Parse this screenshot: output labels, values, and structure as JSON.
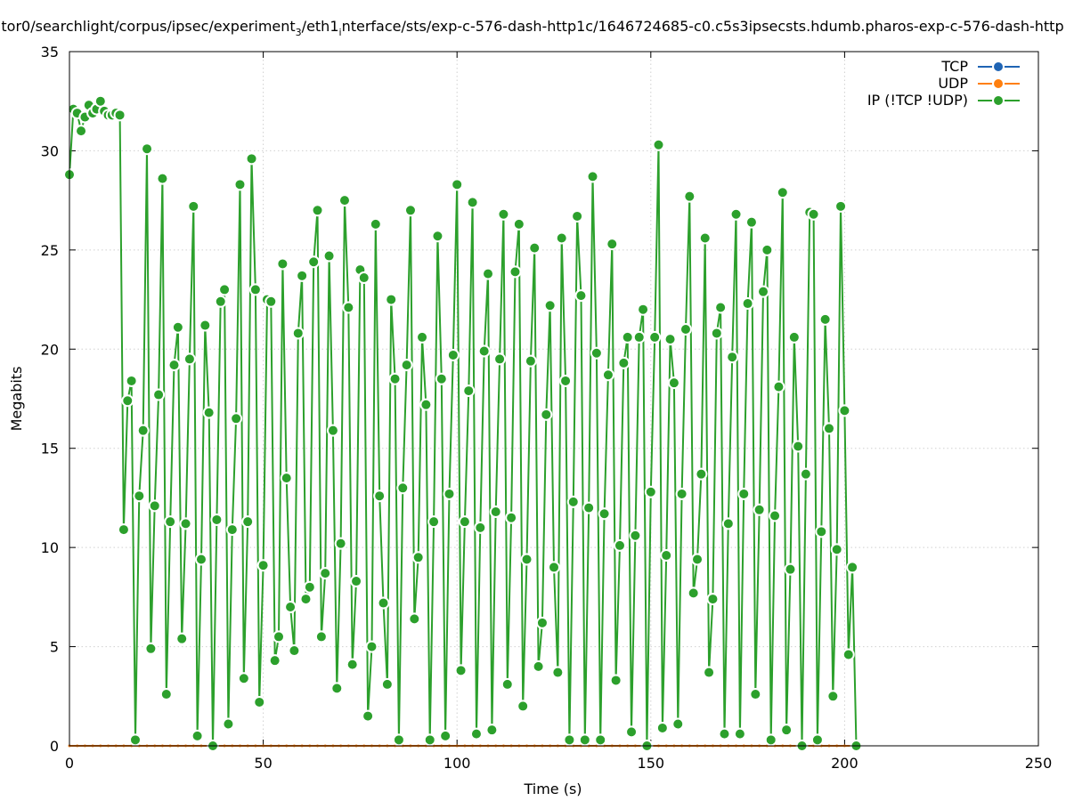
{
  "chart_data": {
    "type": "line",
    "title": "tor0/searchlight/corpus/ipsec/experiment",
    "title_sub": "3",
    "title_mid": "/eth1",
    "title_sub2": "i",
    "title_rest": "nterface/sts/exp-c-576-dash-http1c/1646724685-c0.c5s3ipsecsts.hdumb.pharos-exp-c-576-dash-http",
    "xlabel": "Time (s)",
    "ylabel": "Megabits",
    "xlim": [
      0,
      250
    ],
    "ylim": [
      0,
      35
    ],
    "xticks": [
      0,
      50,
      100,
      150,
      200,
      250
    ],
    "yticks": [
      0,
      5,
      10,
      15,
      20,
      25,
      30,
      35
    ],
    "grid": true,
    "legend_position": "top-right",
    "series": [
      {
        "name": "TCP",
        "color": "#1f64b4",
        "x": [],
        "y": []
      },
      {
        "name": "UDP",
        "color": "#ff7f0e",
        "x": [
          0,
          2,
          4,
          6,
          8,
          10,
          12,
          14,
          16,
          18,
          20,
          22,
          24,
          26,
          28,
          30,
          32,
          34,
          36,
          38,
          40,
          42,
          44,
          46,
          48,
          50,
          52,
          54,
          56,
          58,
          60,
          62,
          64,
          66,
          68,
          70,
          72,
          74,
          76,
          78,
          80,
          82,
          84,
          86,
          88,
          90,
          92,
          94,
          96,
          98,
          100,
          102,
          104,
          106,
          108,
          110,
          112,
          114,
          116,
          118,
          120,
          122,
          124,
          126,
          128,
          130,
          132,
          134,
          136,
          138,
          140,
          142,
          144,
          146,
          148,
          150,
          152,
          154,
          156,
          158,
          160,
          162,
          164,
          166,
          168,
          170,
          172,
          174,
          176,
          178,
          180,
          182,
          184,
          186,
          188,
          190,
          192,
          194,
          196,
          198,
          200,
          202
        ],
        "y": [
          0,
          0,
          0,
          0,
          0,
          0,
          0,
          0,
          0,
          0,
          0,
          0,
          0,
          0,
          0,
          0,
          0,
          0,
          0,
          0,
          0,
          0,
          0,
          0,
          0,
          0,
          0,
          0,
          0,
          0,
          0,
          0,
          0,
          0,
          0,
          0,
          0,
          0,
          0,
          0,
          0,
          0,
          0,
          0,
          0,
          0,
          0,
          0,
          0,
          0,
          0,
          0,
          0,
          0,
          0,
          0,
          0,
          0,
          0,
          0,
          0,
          0,
          0,
          0,
          0,
          0,
          0,
          0,
          0,
          0,
          0,
          0,
          0,
          0,
          0,
          0,
          0,
          0,
          0,
          0,
          0,
          0,
          0,
          0,
          0,
          0,
          0,
          0,
          0,
          0,
          0,
          0,
          0,
          0,
          0,
          0,
          0,
          0,
          0,
          0,
          0,
          0
        ]
      },
      {
        "name": "IP (!TCP  !UDP)",
        "color": "#2ca02c",
        "x": [
          0,
          1,
          2,
          3,
          4,
          5,
          6,
          7,
          8,
          9,
          10,
          11,
          12,
          13,
          14,
          15,
          16,
          17,
          18,
          19,
          20,
          21,
          22,
          23,
          24,
          25,
          26,
          27,
          28,
          29,
          30,
          31,
          32,
          33,
          34,
          35,
          36,
          37,
          38,
          39,
          40,
          41,
          42,
          43,
          44,
          45,
          46,
          47,
          48,
          49,
          50,
          51,
          52,
          53,
          54,
          55,
          56,
          57,
          58,
          59,
          60,
          61,
          62,
          63,
          64,
          65,
          66,
          67,
          68,
          69,
          70,
          71,
          72,
          73,
          74,
          75,
          76,
          77,
          78,
          79,
          80,
          81,
          82,
          83,
          84,
          85,
          86,
          87,
          88,
          89,
          90,
          91,
          92,
          93,
          94,
          95,
          96,
          97,
          98,
          99,
          100,
          101,
          102,
          103,
          104,
          105,
          106,
          107,
          108,
          109,
          110,
          111,
          112,
          113,
          114,
          115,
          116,
          117,
          118,
          119,
          120,
          121,
          122,
          123,
          124,
          125,
          126,
          127,
          128,
          129,
          130,
          131,
          132,
          133,
          134,
          135,
          136,
          137,
          138,
          139,
          140,
          141,
          142,
          143,
          144,
          145,
          146,
          147,
          148,
          149,
          150,
          151,
          152,
          153,
          154,
          155,
          156,
          157,
          158,
          159,
          160,
          161,
          162,
          163,
          164,
          165,
          166,
          167,
          168,
          169,
          170,
          171,
          172,
          173,
          174,
          175,
          176,
          177,
          178,
          179,
          180,
          181,
          182,
          183,
          184,
          185,
          186,
          187,
          188,
          189,
          190,
          191,
          192,
          193,
          194,
          195,
          196,
          197,
          198,
          199,
          200,
          201,
          202,
          203
        ],
        "y": [
          28.8,
          32.1,
          31.9,
          31.0,
          31.7,
          32.3,
          31.9,
          32.1,
          32.5,
          32.0,
          31.8,
          31.8,
          31.9,
          31.8,
          10.9,
          17.4,
          18.4,
          0.3,
          12.6,
          15.9,
          30.1,
          4.9,
          12.1,
          17.7,
          28.6,
          2.6,
          11.3,
          19.2,
          21.1,
          5.4,
          11.2,
          19.5,
          27.2,
          0.5,
          9.4,
          21.2,
          16.8,
          0.0,
          11.4,
          22.4,
          23.0,
          1.1,
          10.9,
          16.5,
          28.3,
          3.4,
          11.3,
          29.6,
          23.0,
          2.2,
          9.1,
          22.5,
          22.4,
          4.3,
          5.5,
          24.3,
          13.5,
          7.0,
          4.8,
          20.8,
          23.7,
          7.4,
          8.0,
          24.4,
          27.0,
          5.5,
          8.7,
          24.7,
          15.9,
          2.9,
          10.2,
          27.5,
          22.1,
          4.1,
          8.3,
          24.0,
          23.6,
          1.5,
          5.0,
          26.3,
          12.6,
          7.2,
          3.1,
          22.5,
          18.5,
          0.3,
          13.0,
          19.2,
          27.0,
          6.4,
          9.5,
          20.6,
          17.2,
          0.3,
          11.3,
          25.7,
          18.5,
          0.5,
          12.7,
          19.7,
          28.3,
          3.8,
          11.3,
          17.9,
          27.4,
          0.6,
          11.0,
          19.9,
          23.8,
          0.8,
          11.8,
          19.5,
          26.8,
          3.1,
          11.5,
          23.9,
          26.3,
          2.0,
          9.4,
          19.4,
          25.1,
          4.0,
          6.2,
          16.7,
          22.2,
          9.0,
          3.7,
          25.6,
          18.4,
          0.3,
          12.3,
          26.7,
          22.7,
          0.3,
          12.0,
          28.7,
          19.8,
          0.3,
          11.7,
          18.7,
          25.3,
          3.3,
          10.1,
          19.3,
          20.6,
          0.7,
          10.6,
          20.6,
          22.0,
          0.0,
          12.8,
          20.6,
          30.3,
          0.9,
          9.6,
          20.5,
          18.3,
          1.1,
          12.7,
          21.0,
          27.7,
          7.7,
          9.4,
          13.7,
          25.6,
          3.7,
          7.4,
          20.8,
          22.1,
          0.6,
          11.2,
          19.6,
          26.8,
          0.6,
          12.7,
          22.3,
          26.4,
          2.6,
          11.9,
          22.9,
          25.0,
          0.3,
          11.6,
          18.1,
          27.9,
          0.8,
          8.9,
          20.6,
          15.1,
          0.0,
          13.7,
          26.9,
          26.8,
          0.3,
          10.8,
          21.5,
          16.0,
          2.5,
          9.9,
          27.2,
          16.9,
          4.6,
          9.0,
          0.0
        ]
      }
    ]
  }
}
